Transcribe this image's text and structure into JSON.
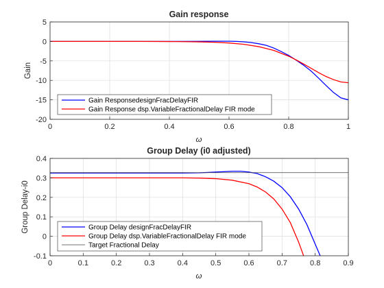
{
  "chart_data": [
    {
      "type": "line",
      "title": "Gain response",
      "xlabel": "ω",
      "ylabel": "Gain",
      "xlim": [
        0,
        1
      ],
      "ylim": [
        -20,
        5
      ],
      "xticks": [
        0,
        0.2,
        0.4,
        0.6,
        0.8,
        1
      ],
      "xtick_labels": [
        "0",
        "0.2",
        "0.4",
        "0.6",
        "0.8",
        "1"
      ],
      "yticks": [
        -20,
        -15,
        -10,
        -5,
        0,
        5
      ],
      "ytick_labels": [
        "-20",
        "-15",
        "-10",
        "-5",
        "0",
        "5"
      ],
      "grid": true,
      "legend_position": "bottom-left",
      "series": [
        {
          "name": "Gain ResponsedesignFracDelayFIR",
          "color": "#0000ff",
          "x": [
            0,
            0.1,
            0.2,
            0.3,
            0.4,
            0.5,
            0.55,
            0.6,
            0.625,
            0.65,
            0.675,
            0.7,
            0.725,
            0.75,
            0.775,
            0.8,
            0.825,
            0.85,
            0.875,
            0.9,
            0.925,
            0.95,
            0.975,
            1.0
          ],
          "y": [
            0,
            0,
            0,
            0,
            0,
            0.02,
            0.05,
            0.05,
            0.0,
            -0.1,
            -0.3,
            -0.6,
            -1.0,
            -1.7,
            -2.6,
            -3.6,
            -4.8,
            -6.1,
            -7.6,
            -9.4,
            -11.3,
            -13.1,
            -14.5,
            -15.0
          ]
        },
        {
          "name": "Gain Response dsp.VariableFractionalDelay FIR mode",
          "color": "#ff0000",
          "x": [
            0,
            0.1,
            0.2,
            0.3,
            0.4,
            0.45,
            0.5,
            0.55,
            0.6,
            0.65,
            0.7,
            0.75,
            0.8,
            0.825,
            0.85,
            0.875,
            0.9,
            0.925,
            0.95,
            0.975,
            1.0
          ],
          "y": [
            0,
            0,
            0,
            0,
            -0.03,
            -0.06,
            -0.12,
            -0.22,
            -0.4,
            -0.75,
            -1.35,
            -2.3,
            -3.8,
            -4.75,
            -5.8,
            -6.9,
            -8.0,
            -9.0,
            -9.8,
            -10.4,
            -10.6
          ]
        }
      ]
    },
    {
      "type": "line",
      "title": "Group Delay (i0 adjusted)",
      "xlabel": "ω",
      "ylabel": "Group  Delay-i0",
      "xlim": [
        0,
        0.9
      ],
      "ylim": [
        -0.1,
        0.4
      ],
      "xticks": [
        0,
        0.1,
        0.2,
        0.3,
        0.4,
        0.5,
        0.6,
        0.7,
        0.8,
        0.9
      ],
      "xtick_labels": [
        "0",
        "0.1",
        "0.2",
        "0.3",
        "0.4",
        "0.5",
        "0.6",
        "0.7",
        "0.8",
        "0.9"
      ],
      "yticks": [
        -0.1,
        0,
        0.1,
        0.2,
        0.3,
        0.4
      ],
      "ytick_labels": [
        "-0.1",
        "0",
        "0.1",
        "0.2",
        "0.3",
        "0.4"
      ],
      "grid": true,
      "legend_position": "bottom-left",
      "series": [
        {
          "name": "Group Delay designFracDelayFIR",
          "color": "#0000ff",
          "x": [
            0,
            0.1,
            0.2,
            0.3,
            0.4,
            0.45,
            0.5,
            0.55,
            0.575,
            0.6,
            0.625,
            0.65,
            0.675,
            0.7,
            0.725,
            0.75,
            0.775,
            0.8,
            0.815
          ],
          "y": [
            0.325,
            0.325,
            0.325,
            0.325,
            0.325,
            0.326,
            0.33,
            0.334,
            0.334,
            0.33,
            0.322,
            0.306,
            0.283,
            0.25,
            0.203,
            0.14,
            0.06,
            -0.04,
            -0.1
          ]
        },
        {
          "name": "Group Delay dsp.VariableFractionalDelay FIR mode",
          "color": "#ff0000",
          "x": [
            0,
            0.1,
            0.2,
            0.3,
            0.4,
            0.45,
            0.5,
            0.55,
            0.6,
            0.625,
            0.65,
            0.675,
            0.7,
            0.725,
            0.75,
            0.765
          ],
          "y": [
            0.3,
            0.3,
            0.3,
            0.3,
            0.3,
            0.299,
            0.296,
            0.288,
            0.27,
            0.253,
            0.228,
            0.192,
            0.14,
            0.07,
            -0.03,
            -0.1
          ]
        },
        {
          "name": "Target Fractional Delay",
          "color": "#404040",
          "x": [
            0,
            0.9
          ],
          "y": [
            0.327,
            0.327
          ]
        }
      ]
    }
  ]
}
